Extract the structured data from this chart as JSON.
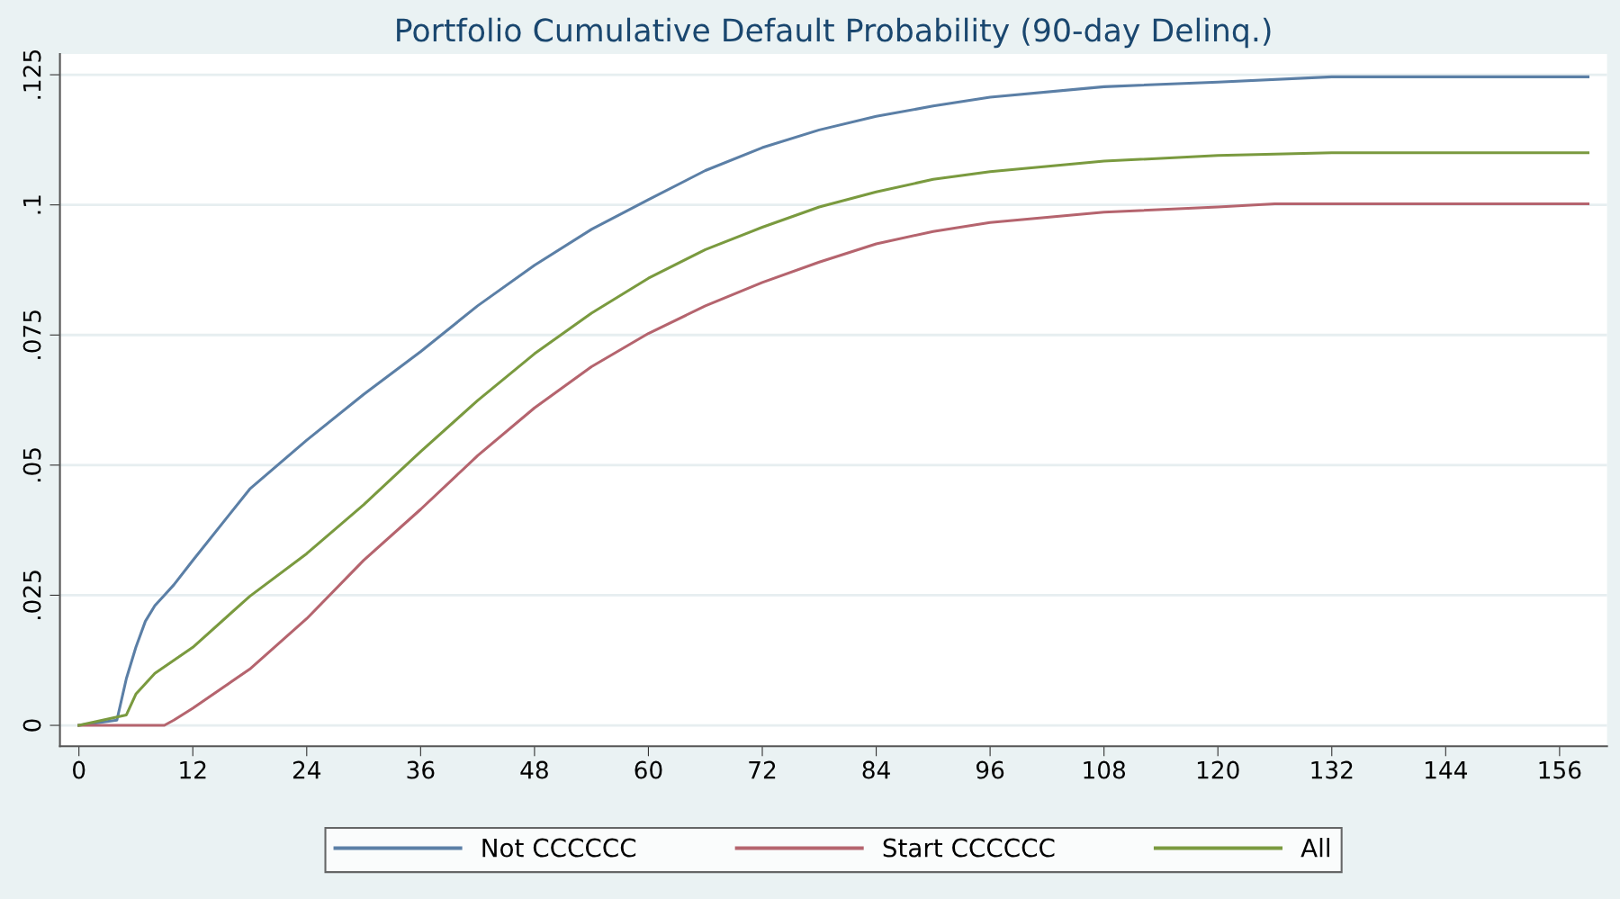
{
  "chart_data": {
    "type": "line",
    "title": "Portfolio Cumulative Default Probability (90-day Delinq.)",
    "xlim": [
      -2,
      161
    ],
    "xticks": [
      0,
      12,
      24,
      36,
      48,
      60,
      72,
      84,
      96,
      108,
      120,
      132,
      144,
      156
    ],
    "ylim": [
      -0.004,
      0.129
    ],
    "yticks": [
      {
        "value": 0,
        "label": "0"
      },
      {
        "value": 0.025,
        "label": ".025"
      },
      {
        "value": 0.05,
        "label": ".05"
      },
      {
        "value": 0.075,
        "label": ".075"
      },
      {
        "value": 0.1,
        "label": ".1"
      },
      {
        "value": 0.125,
        "label": ".125"
      }
    ],
    "grid": "y",
    "legend": "bottom",
    "marker": "none",
    "line_style": "solid",
    "series": [
      {
        "name": "Not CCCCCC",
        "color": "#5b7fa6",
        "x": [
          0,
          4,
          5,
          6,
          7,
          8,
          9,
          10,
          12,
          18,
          24,
          30,
          36,
          42,
          48,
          54,
          60,
          66,
          72,
          78,
          84,
          90,
          96,
          108,
          120,
          132,
          159
        ],
        "values": [
          0,
          0.001,
          0.009,
          0.015,
          0.02,
          0.023,
          0.025,
          0.027,
          0.0317,
          0.0454,
          0.0548,
          0.0636,
          0.0718,
          0.0806,
          0.0884,
          0.0953,
          0.101,
          0.1066,
          0.111,
          0.1144,
          0.117,
          0.119,
          0.1207,
          0.1227,
          0.1236,
          0.1246,
          0.1246
        ]
      },
      {
        "name": "Start CCCCCC",
        "color": "#b5646e",
        "x": [
          0,
          9,
          10,
          12,
          18,
          24,
          30,
          36,
          42,
          48,
          54,
          60,
          66,
          72,
          78,
          84,
          90,
          96,
          108,
          120,
          126,
          159
        ],
        "values": [
          0,
          0,
          0.001,
          0.0033,
          0.0108,
          0.0205,
          0.0317,
          0.0415,
          0.0518,
          0.061,
          0.0689,
          0.0753,
          0.0806,
          0.0851,
          0.089,
          0.0925,
          0.0949,
          0.0966,
          0.0986,
          0.0996,
          0.1002,
          0.1002
        ]
      },
      {
        "name": "All",
        "color": "#7a9a3f",
        "x": [
          0,
          5,
          6,
          7,
          8,
          12,
          18,
          24,
          30,
          36,
          42,
          48,
          54,
          60,
          66,
          72,
          78,
          84,
          90,
          96,
          108,
          120,
          132,
          159
        ],
        "values": [
          0,
          0.002,
          0.006,
          0.008,
          0.01,
          0.015,
          0.0248,
          0.033,
          0.0424,
          0.0526,
          0.0624,
          0.0714,
          0.0792,
          0.0859,
          0.0914,
          0.0957,
          0.0996,
          0.1025,
          0.1049,
          0.1064,
          0.1084,
          0.1095,
          0.11,
          0.11
        ]
      }
    ]
  }
}
